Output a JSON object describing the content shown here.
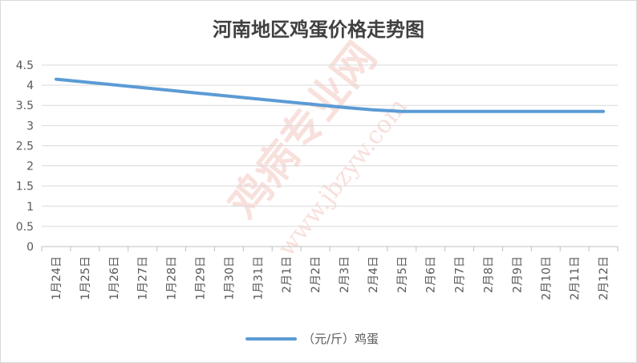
{
  "chart_data": {
    "type": "line",
    "title": "河南地区鸡蛋价格走势图",
    "categories": [
      "1月24日",
      "1月25日",
      "1月26日",
      "1月27日",
      "1月28日",
      "1月29日",
      "1月30日",
      "1月31日",
      "2月1日",
      "2月2日",
      "2月3日",
      "2月4日",
      "2月5日",
      "2月6日",
      "2月7日",
      "2月8日",
      "2月9日",
      "2月10日",
      "2月11日",
      "2月12日"
    ],
    "series": [
      {
        "name": "（元/斤）鸡蛋",
        "color": "#5b9bd5",
        "values": [
          4.15,
          4.08,
          4.01,
          3.94,
          3.87,
          3.8,
          3.73,
          3.66,
          3.59,
          3.52,
          3.45,
          3.39,
          3.35,
          3.35,
          3.35,
          3.35,
          3.35,
          3.35,
          3.35,
          3.35
        ]
      }
    ],
    "ylim": [
      0,
      4.5
    ],
    "yticks": [
      "0",
      "0.5",
      "1",
      "1.5",
      "2",
      "2.5",
      "3",
      "3.5",
      "4",
      "4.5"
    ],
    "grid": true,
    "legend_position": "bottom"
  },
  "watermark": {
    "text1": "鸡病专业网",
    "text2": "www.jbzyw.com"
  }
}
